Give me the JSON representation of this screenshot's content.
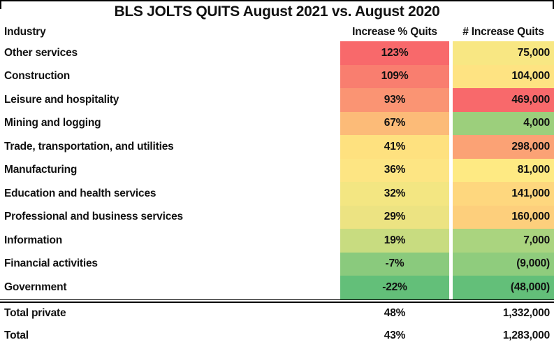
{
  "title": "BLS JOLTS QUITS August 2021 vs. August 2020",
  "columns": [
    "Industry",
    "Increase % Quits",
    "# Increase Quits"
  ],
  "rows": [
    {
      "industry": "Other services",
      "pct": "123%",
      "num": "75,000",
      "pct_color": "#f8696b",
      "num_color": "#f8e783"
    },
    {
      "industry": "Construction",
      "pct": "109%",
      "num": "104,000",
      "pct_color": "#f97e6f",
      "num_color": "#fee382"
    },
    {
      "industry": "Leisure and hospitality",
      "pct": "93%",
      "num": "469,000",
      "pct_color": "#fa9473",
      "num_color": "#f8696b"
    },
    {
      "industry": "Mining and logging",
      "pct": "67%",
      "num": "4,000",
      "pct_color": "#fcbb78",
      "num_color": "#9ccf7c"
    },
    {
      "industry": "Trade, transportation, and utilities",
      "pct": "41%",
      "num": "298,000",
      "pct_color": "#fee17f",
      "num_color": "#fba275"
    },
    {
      "industry": "Manufacturing",
      "pct": "36%",
      "num": "81,000",
      "pct_color": "#fde583",
      "num_color": "#feea83"
    },
    {
      "industry": "Education and health services",
      "pct": "32%",
      "num": "141,000",
      "pct_color": "#f3e682",
      "num_color": "#fed77e"
    },
    {
      "industry": "Professional and business services",
      "pct": "29%",
      "num": "160,000",
      "pct_color": "#ece382",
      "num_color": "#fdcf7c"
    },
    {
      "industry": "Information",
      "pct": "19%",
      "num": "7,000",
      "pct_color": "#c8dc80",
      "num_color": "#aad47f"
    },
    {
      "industry": "Financial activities",
      "pct": "-7%",
      "num": "(9,000)",
      "pct_color": "#8aca7d",
      "num_color": "#8fcc7d"
    },
    {
      "industry": "Government",
      "pct": "-22%",
      "num": "(48,000)",
      "pct_color": "#63bf79",
      "num_color": "#63bf79"
    }
  ],
  "totals": [
    {
      "label": "Total private",
      "pct": "48%",
      "num": "1,332,000"
    },
    {
      "label": "Total",
      "pct": "43%",
      "num": "1,283,000"
    }
  ],
  "colors": {
    "scale_red": "#f8696b",
    "scale_yellow": "#ffeb84",
    "scale_green": "#63be7b",
    "text": "#111111"
  },
  "chart_data": {
    "type": "table",
    "title": "BLS JOLTS QUITS August 2021 vs. August 2020",
    "columns": [
      "Industry",
      "Increase % Quits",
      "# Increase Quits"
    ],
    "categories": [
      "Other services",
      "Construction",
      "Leisure and hospitality",
      "Mining and logging",
      "Trade, transportation, and utilities",
      "Manufacturing",
      "Education and health services",
      "Professional and business services",
      "Information",
      "Financial activities",
      "Government"
    ],
    "series": [
      {
        "name": "Increase % Quits",
        "unit": "%",
        "values": [
          123,
          109,
          93,
          67,
          41,
          36,
          32,
          29,
          19,
          -7,
          -22
        ]
      },
      {
        "name": "# Increase Quits",
        "unit": "count",
        "values": [
          75000,
          104000,
          469000,
          4000,
          298000,
          81000,
          141000,
          160000,
          7000,
          -9000,
          -48000
        ]
      }
    ],
    "totals": [
      {
        "label": "Total private",
        "increase_pct": 48,
        "increase_num": 1332000
      },
      {
        "label": "Total",
        "increase_pct": 43,
        "increase_num": 1283000
      }
    ],
    "layout_hints": "heatmap conditional formatting red(high)-yellow(mid)-green(low) applied per column; negative numbers shown in parentheses"
  }
}
